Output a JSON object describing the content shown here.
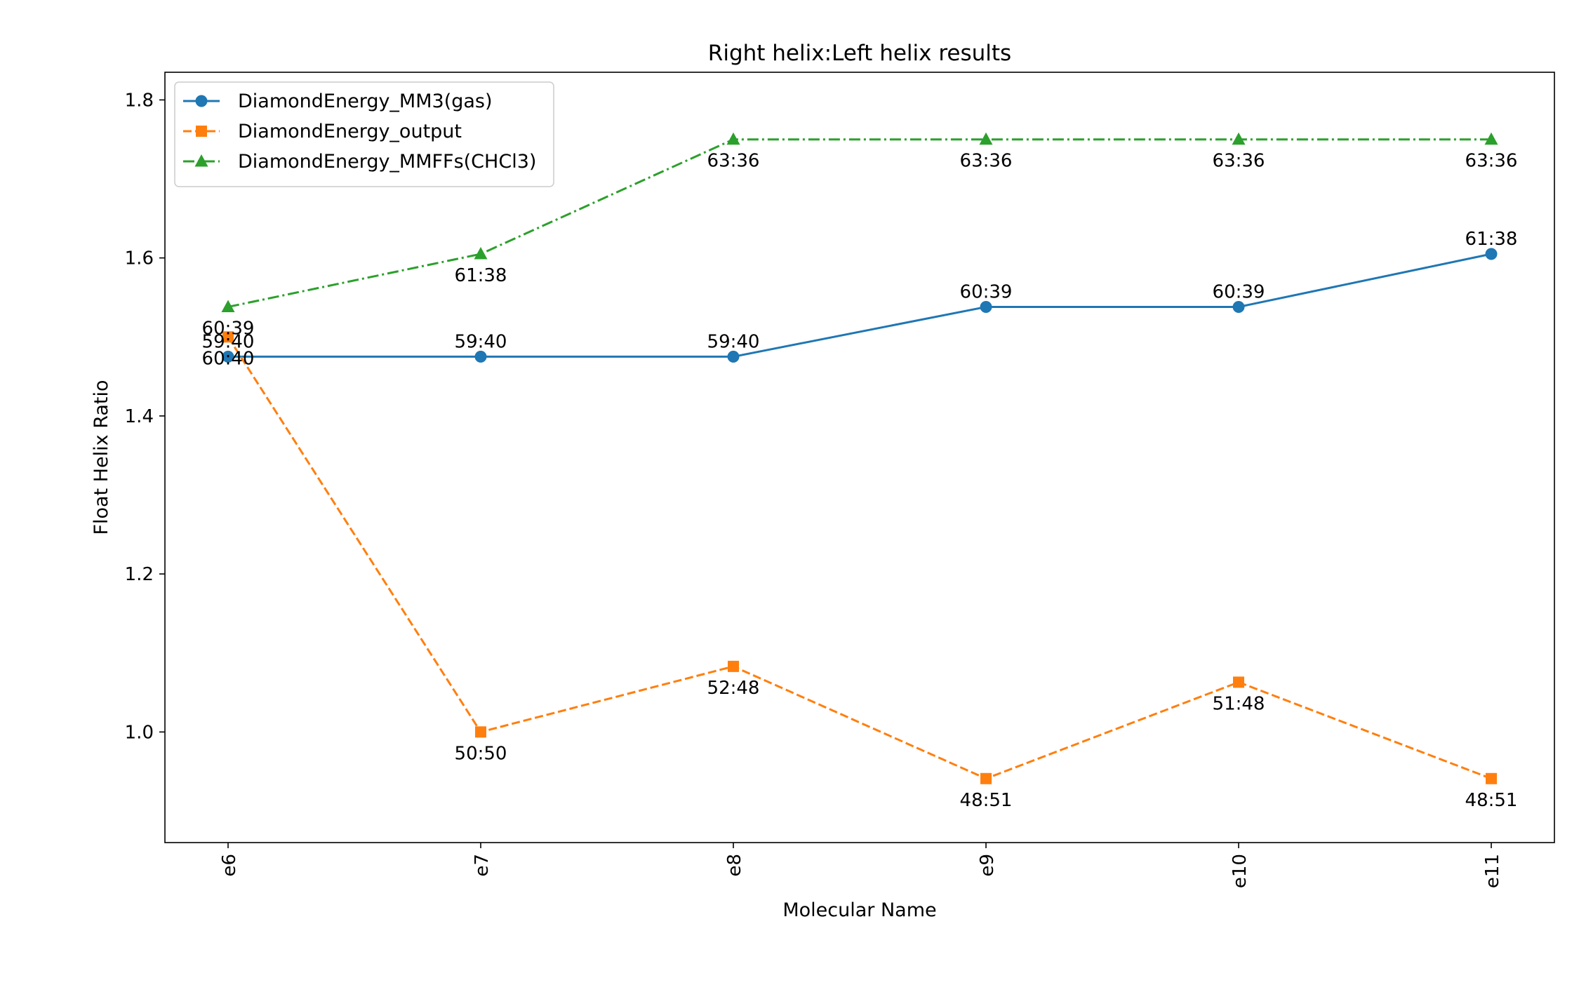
{
  "chart_data": {
    "type": "line",
    "title": "Right helix:Left helix results",
    "xlabel": "Molecular Name",
    "ylabel": "Float Helix Ratio",
    "categories": [
      "e6",
      "e7",
      "e8",
      "e9",
      "e10",
      "e11"
    ],
    "ylim": [
      0.86,
      1.835
    ],
    "yticks": [
      1.0,
      1.2,
      1.4,
      1.6,
      1.8
    ],
    "ytick_labels": [
      "1.0",
      "1.2",
      "1.4",
      "1.6",
      "1.8"
    ],
    "grid": false,
    "legend_position": "top-left",
    "series": [
      {
        "name": "DiamondEnergy_MM3(gas)",
        "color": "#1f77b4",
        "linestyle": "solid",
        "marker": "circle",
        "values": [
          1.475,
          1.475,
          1.475,
          1.538,
          1.538,
          1.605
        ],
        "labels": [
          "59:40",
          "59:40",
          "59:40",
          "60:39",
          "60:39",
          "61:38"
        ],
        "label_position": "above"
      },
      {
        "name": "DiamondEnergy_output",
        "color": "#ff7f0e",
        "linestyle": "dashed",
        "marker": "square",
        "values": [
          1.5,
          1.0,
          1.083,
          0.941,
          1.063,
          0.941
        ],
        "labels": [
          "60:40",
          "50:50",
          "52:48",
          "48:51",
          "51:48",
          "48:51"
        ],
        "label_position": "below"
      },
      {
        "name": "DiamondEnergy_MMFFs(CHCl3)",
        "color": "#2ca02c",
        "linestyle": "dashdot",
        "marker": "triangle",
        "values": [
          1.538,
          1.605,
          1.75,
          1.75,
          1.75,
          1.75
        ],
        "labels": [
          "60:39",
          "61:38",
          "63:36",
          "63:36",
          "63:36",
          "63:36"
        ],
        "label_position": "below"
      }
    ]
  }
}
